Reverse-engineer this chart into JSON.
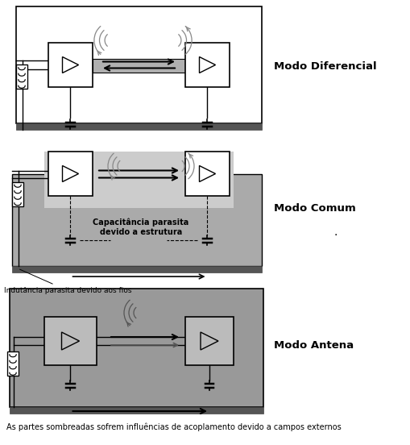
{
  "fig_width": 5.09,
  "fig_height": 5.52,
  "dpi": 100,
  "bg_color": "#ffffff",
  "gray_cable": "#b0b0b0",
  "gray_panel": "#aaaaaa",
  "gray_dark_panel": "#999999",
  "gray_antena_bg": "#999999",
  "black": "#000000",
  "white": "#ffffff",
  "ground_color": "#555555",
  "label_diferencial": "Modo Diferencial",
  "label_comum": "Modo Comum",
  "label_antena": "Modo Antena",
  "label_cap": "Capacitância parasita\ndevido a estrutura",
  "label_ind": "Indutância parasita devido aos fios",
  "label_bottom": "As partes sombreadas sofrem influências de acoplamento devido a campos externos"
}
